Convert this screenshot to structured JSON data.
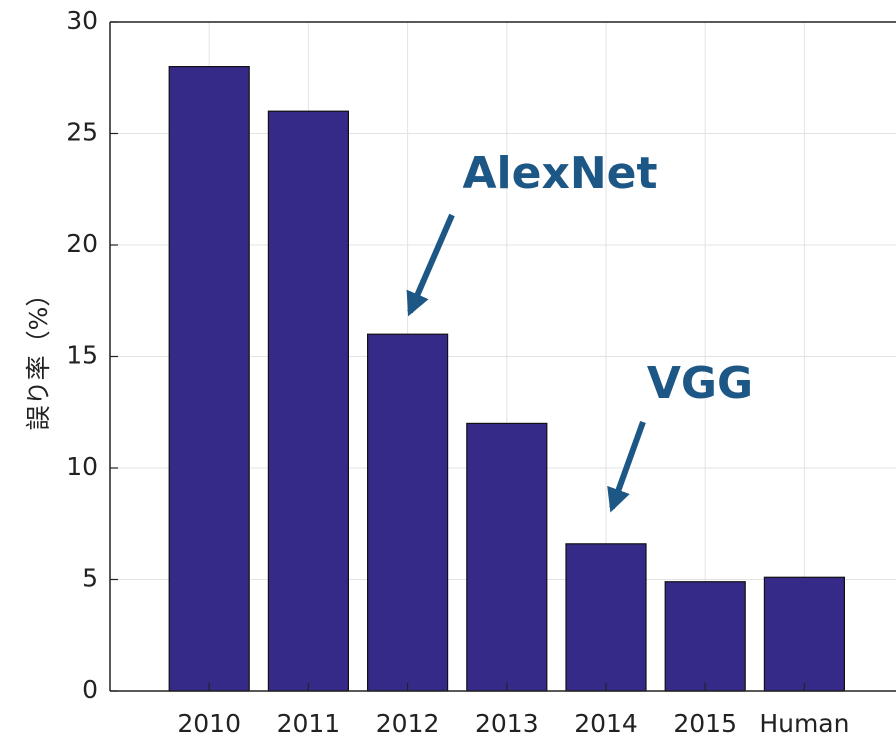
{
  "chart_data": {
    "type": "bar",
    "ylabel": "誤り率（%）",
    "categories": [
      "2010",
      "2011",
      "2012",
      "2013",
      "2014",
      "2015",
      "Human"
    ],
    "values": [
      28,
      26,
      16,
      12,
      6.6,
      4.9,
      5.1
    ],
    "color": "#352a87",
    "ylim": [
      0,
      30
    ],
    "yticks": [
      0,
      5,
      10,
      15,
      20,
      25,
      30
    ],
    "grid": true,
    "annotations": [
      "AlexNet",
      "VGG"
    ]
  }
}
